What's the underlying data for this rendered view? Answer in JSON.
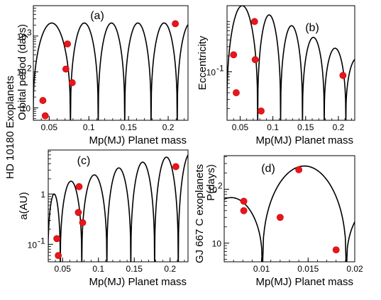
{
  "left_title_lines": [
    "HD 10180 Exoplanets",
    "Orbital period (days)"
  ],
  "bottom_right_title_lines": [
    "GJ 667 C exoplanets",
    "P(days)"
  ],
  "chart_data": [
    {
      "id": "a",
      "type": "scatter",
      "panel_label": "(a)",
      "xlabel": "Mp(MJ) Planet mass",
      "ylabel": "",
      "yscale": "log",
      "xlim": [
        0.03,
        0.225
      ],
      "ylim": [
        4.5,
        7000
      ],
      "xticks": [
        {
          "v": 0.05,
          "label": "0.05"
        },
        {
          "v": 0.1,
          "label": "0.1"
        },
        {
          "v": 0.15,
          "label": "0.15"
        },
        {
          "v": 0.2,
          "label": "0.2"
        }
      ],
      "yticks": [
        {
          "v": 10,
          "label": "10",
          "exp": ""
        },
        {
          "v": 100,
          "label": "10",
          "exp": "2"
        },
        {
          "v": 1000,
          "label": "10",
          "exp": "3"
        }
      ],
      "curve": {
        "peak": 2300,
        "low": 3,
        "zeros": [
          0.0296,
          0.0768,
          0.1118,
          0.1452,
          0.1784,
          0.2114,
          0.245
        ],
        "x_start": 0.03,
        "x_end": 0.225,
        "style": "line",
        "arch_exponent": 0.35
      },
      "points": [
        {
          "x": 0.042,
          "y": 16
        },
        {
          "x": 0.045,
          "y": 6
        },
        {
          "x": 0.071,
          "y": 120
        },
        {
          "x": 0.073,
          "y": 600
        },
        {
          "x": 0.079,
          "y": 50
        },
        {
          "x": 0.209,
          "y": 2200
        }
      ]
    },
    {
      "id": "b",
      "type": "scatter",
      "panel_label": "(b)",
      "xlabel": "Mp(MJ) Planet mass",
      "ylabel": "Eccentricity",
      "yscale": "log",
      "xlim": [
        0.03,
        0.225
      ],
      "ylim": [
        0.012,
        1.8
      ],
      "xticks": [
        {
          "v": 0.05,
          "label": "0.05"
        },
        {
          "v": 0.1,
          "label": "0.1"
        },
        {
          "v": 0.15,
          "label": "0.15"
        },
        {
          "v": 0.2,
          "label": "0.2"
        }
      ],
      "yticks": [
        {
          "v": 0.1,
          "label": "10",
          "exp": "-1"
        }
      ],
      "curve": {
        "peak_first": 1.8,
        "decay": [
          1.8,
          1.2,
          0.75,
          0.45,
          0.28,
          0.18,
          0.12
        ],
        "low": 0.01,
        "zeros": [
          0.0296,
          0.0768,
          0.1118,
          0.1452,
          0.1784,
          0.2114,
          0.245
        ],
        "x_start": 0.03,
        "x_end": 0.225,
        "style": "line",
        "arch_exponent": 0.35
      },
      "points": [
        {
          "x": 0.04,
          "y": 0.21
        },
        {
          "x": 0.044,
          "y": 0.04
        },
        {
          "x": 0.072,
          "y": 0.9
        },
        {
          "x": 0.073,
          "y": 0.17
        },
        {
          "x": 0.082,
          "y": 0.018
        },
        {
          "x": 0.207,
          "y": 0.085
        }
      ]
    },
    {
      "id": "c",
      "type": "scatter",
      "panel_label": "(c)",
      "xlabel": "Mp(MJ) Planet mass",
      "ylabel": "a(AU)",
      "yscale": "log",
      "xlim": [
        0.03,
        0.225
      ],
      "ylim": [
        0.045,
        7.5
      ],
      "xticks": [
        {
          "v": 0.05,
          "label": "0.05"
        },
        {
          "v": 0.1,
          "label": "0.1"
        },
        {
          "v": 0.15,
          "label": "0.15"
        },
        {
          "v": 0.2,
          "label": "0.2"
        }
      ],
      "yticks": [
        {
          "v": 0.1,
          "label": "10",
          "exp": "-1"
        },
        {
          "v": 1,
          "label": "1",
          "exp": ""
        }
      ],
      "curve": {
        "decay": [
          1.0,
          1.8,
          2.4,
          3.3,
          4.3,
          5.4,
          6.5
        ],
        "low": 0.03,
        "zeros": [
          0.0296,
          0.0468,
          0.0768,
          0.1118,
          0.1452,
          0.1784,
          0.2114,
          0.245
        ],
        "x_start": 0.03,
        "x_end": 0.225,
        "style": "line",
        "arch_exponent": 0.35
      },
      "points": [
        {
          "x": 0.042,
          "y": 0.13
        },
        {
          "x": 0.044,
          "y": 0.06
        },
        {
          "x": 0.072,
          "y": 0.43
        },
        {
          "x": 0.073,
          "y": 1.4
        },
        {
          "x": 0.078,
          "y": 0.27
        },
        {
          "x": 0.208,
          "y": 3.5
        }
      ]
    },
    {
      "id": "d",
      "type": "scatter",
      "panel_label": "(d)",
      "xlabel": "Mp(MJ) Planet mass",
      "ylabel": "",
      "yscale": "log",
      "xlim": [
        0.006,
        0.02
      ],
      "ylim": [
        4.5,
        420
      ],
      "xticks": [
        {
          "v": 0.01,
          "label": "0.01"
        },
        {
          "v": 0.015,
          "label": "0.015"
        },
        {
          "v": 0.02,
          "label": "0.02"
        }
      ],
      "yticks": [
        {
          "v": 10,
          "label": "10",
          "exp": ""
        },
        {
          "v": 100,
          "label": "10",
          "exp": "2"
        }
      ],
      "curve": {
        "decay": [
          70,
          270,
          70
        ],
        "low": 3,
        "zeros": [
          0.0034,
          0.0101,
          0.0191,
          0.0278
        ],
        "x_start": 0.006,
        "x_end": 0.02,
        "style": "line",
        "arch_exponent": 0.35
      },
      "points": [
        {
          "x": 0.0081,
          "y": 60
        },
        {
          "x": 0.0081,
          "y": 40
        },
        {
          "x": 0.012,
          "y": 30
        },
        {
          "x": 0.014,
          "y": 230
        },
        {
          "x": 0.018,
          "y": 7.5
        }
      ]
    }
  ]
}
